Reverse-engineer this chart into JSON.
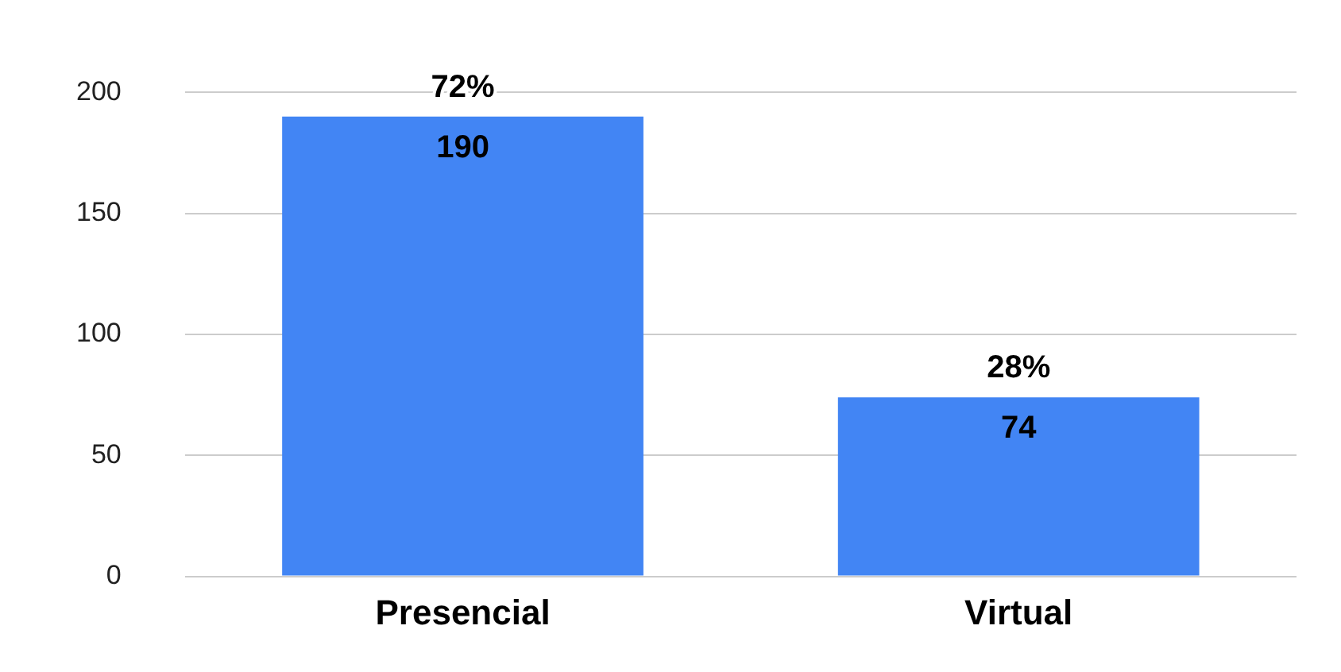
{
  "chart_data": {
    "type": "bar",
    "categories": [
      "Presencial",
      "Virtual"
    ],
    "values": [
      190,
      74
    ],
    "color": "#4285f4",
    "ylim": [
      0,
      200
    ],
    "yticks": [
      0,
      50,
      100,
      150,
      200
    ],
    "grid": "y",
    "data_labels": true,
    "annotations": [
      {
        "text": "72%",
        "x": "Presencial",
        "y": 190
      },
      {
        "text": "28%",
        "x": "Virtual",
        "y": 74
      }
    ]
  }
}
